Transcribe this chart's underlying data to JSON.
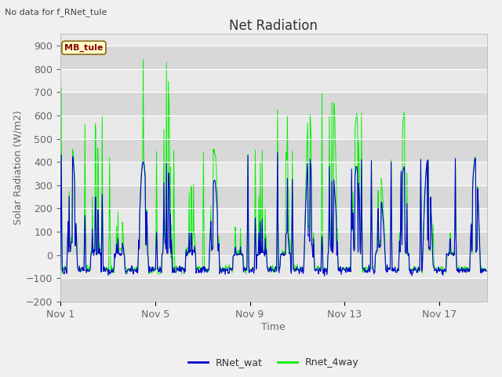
{
  "title": "Net Radiation",
  "xlabel": "Time",
  "ylabel": "Solar Radiation (W/m2)",
  "top_text": "No data for f_RNet_tule",
  "legend_box_label": "MB_tule",
  "ylim": [
    -200,
    950
  ],
  "yticks": [
    -200,
    -100,
    0,
    100,
    200,
    300,
    400,
    500,
    600,
    700,
    800,
    900
  ],
  "xtick_labels": [
    "Nov 1",
    "Nov 5",
    "Nov 9",
    "Nov 13",
    "Nov 17"
  ],
  "xtick_positions": [
    0,
    4,
    8,
    12,
    16
  ],
  "xlim": [
    0,
    18
  ],
  "fig_bg_color": "#f0f0f0",
  "plot_bg_color": "#e8e8e8",
  "plot_bg_dark": "#d8d8d8",
  "grid_color": "#ffffff",
  "line1_color": "#0000cc",
  "line2_color": "#00ee00",
  "legend_line1": "RNet_wat",
  "legend_line2": "Rnet_4way",
  "title_fontsize": 12,
  "axis_label_fontsize": 9,
  "tick_fontsize": 9,
  "label_color": "#666666",
  "title_color": "#333333",
  "box_facecolor": "#ffffcc",
  "box_edgecolor": "#8b6914",
  "box_textcolor": "#8b0000"
}
